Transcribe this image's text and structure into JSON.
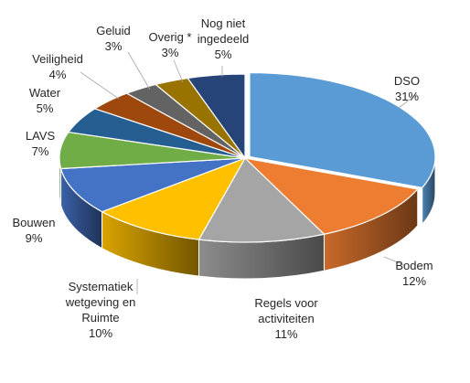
{
  "chart_data": {
    "type": "pie",
    "style": "3d-exploded-ring",
    "unit": "%",
    "slices": [
      {
        "name": "DSO",
        "value": 31,
        "label": "DSO",
        "value_label": "31%",
        "color": "#5b9bd5"
      },
      {
        "name": "Bodem",
        "value": 12,
        "label": "Bodem",
        "value_label": "12%",
        "color": "#ed7d31"
      },
      {
        "name": "Regels voor activiteiten",
        "value": 11,
        "label": "Regels voor\nactiviteiten",
        "value_label": "11%",
        "color": "#a5a5a5"
      },
      {
        "name": "Systematiek wetgeving en Ruimte",
        "value": 10,
        "label": "Systematiek\nwetgeving en\nRuimte",
        "value_label": "10%",
        "color": "#ffc000"
      },
      {
        "name": "Bouwen",
        "value": 9,
        "label": "Bouwen",
        "value_label": "9%",
        "color": "#4472c4"
      },
      {
        "name": "LAVS",
        "value": 7,
        "label": "LAVS",
        "value_label": "7%",
        "color": "#70ad47"
      },
      {
        "name": "Water",
        "value": 5,
        "label": "Water",
        "value_label": "5%",
        "color": "#255e91"
      },
      {
        "name": "Veiligheid",
        "value": 4,
        "label": "Veiligheid",
        "value_label": "4%",
        "color": "#9e480e"
      },
      {
        "name": "Geluid",
        "value": 3,
        "label": "Geluid",
        "value_label": "3%",
        "color": "#636363"
      },
      {
        "name": "Overig *",
        "value": 3,
        "label": "Overig *",
        "value_label": "3%",
        "color": "#997300"
      },
      {
        "name": "Nog niet ingedeeld",
        "value": 5,
        "label": "Nog niet\ningedeeld",
        "value_label": "5%",
        "color": "#264478"
      }
    ],
    "legend": "none",
    "title": ""
  }
}
